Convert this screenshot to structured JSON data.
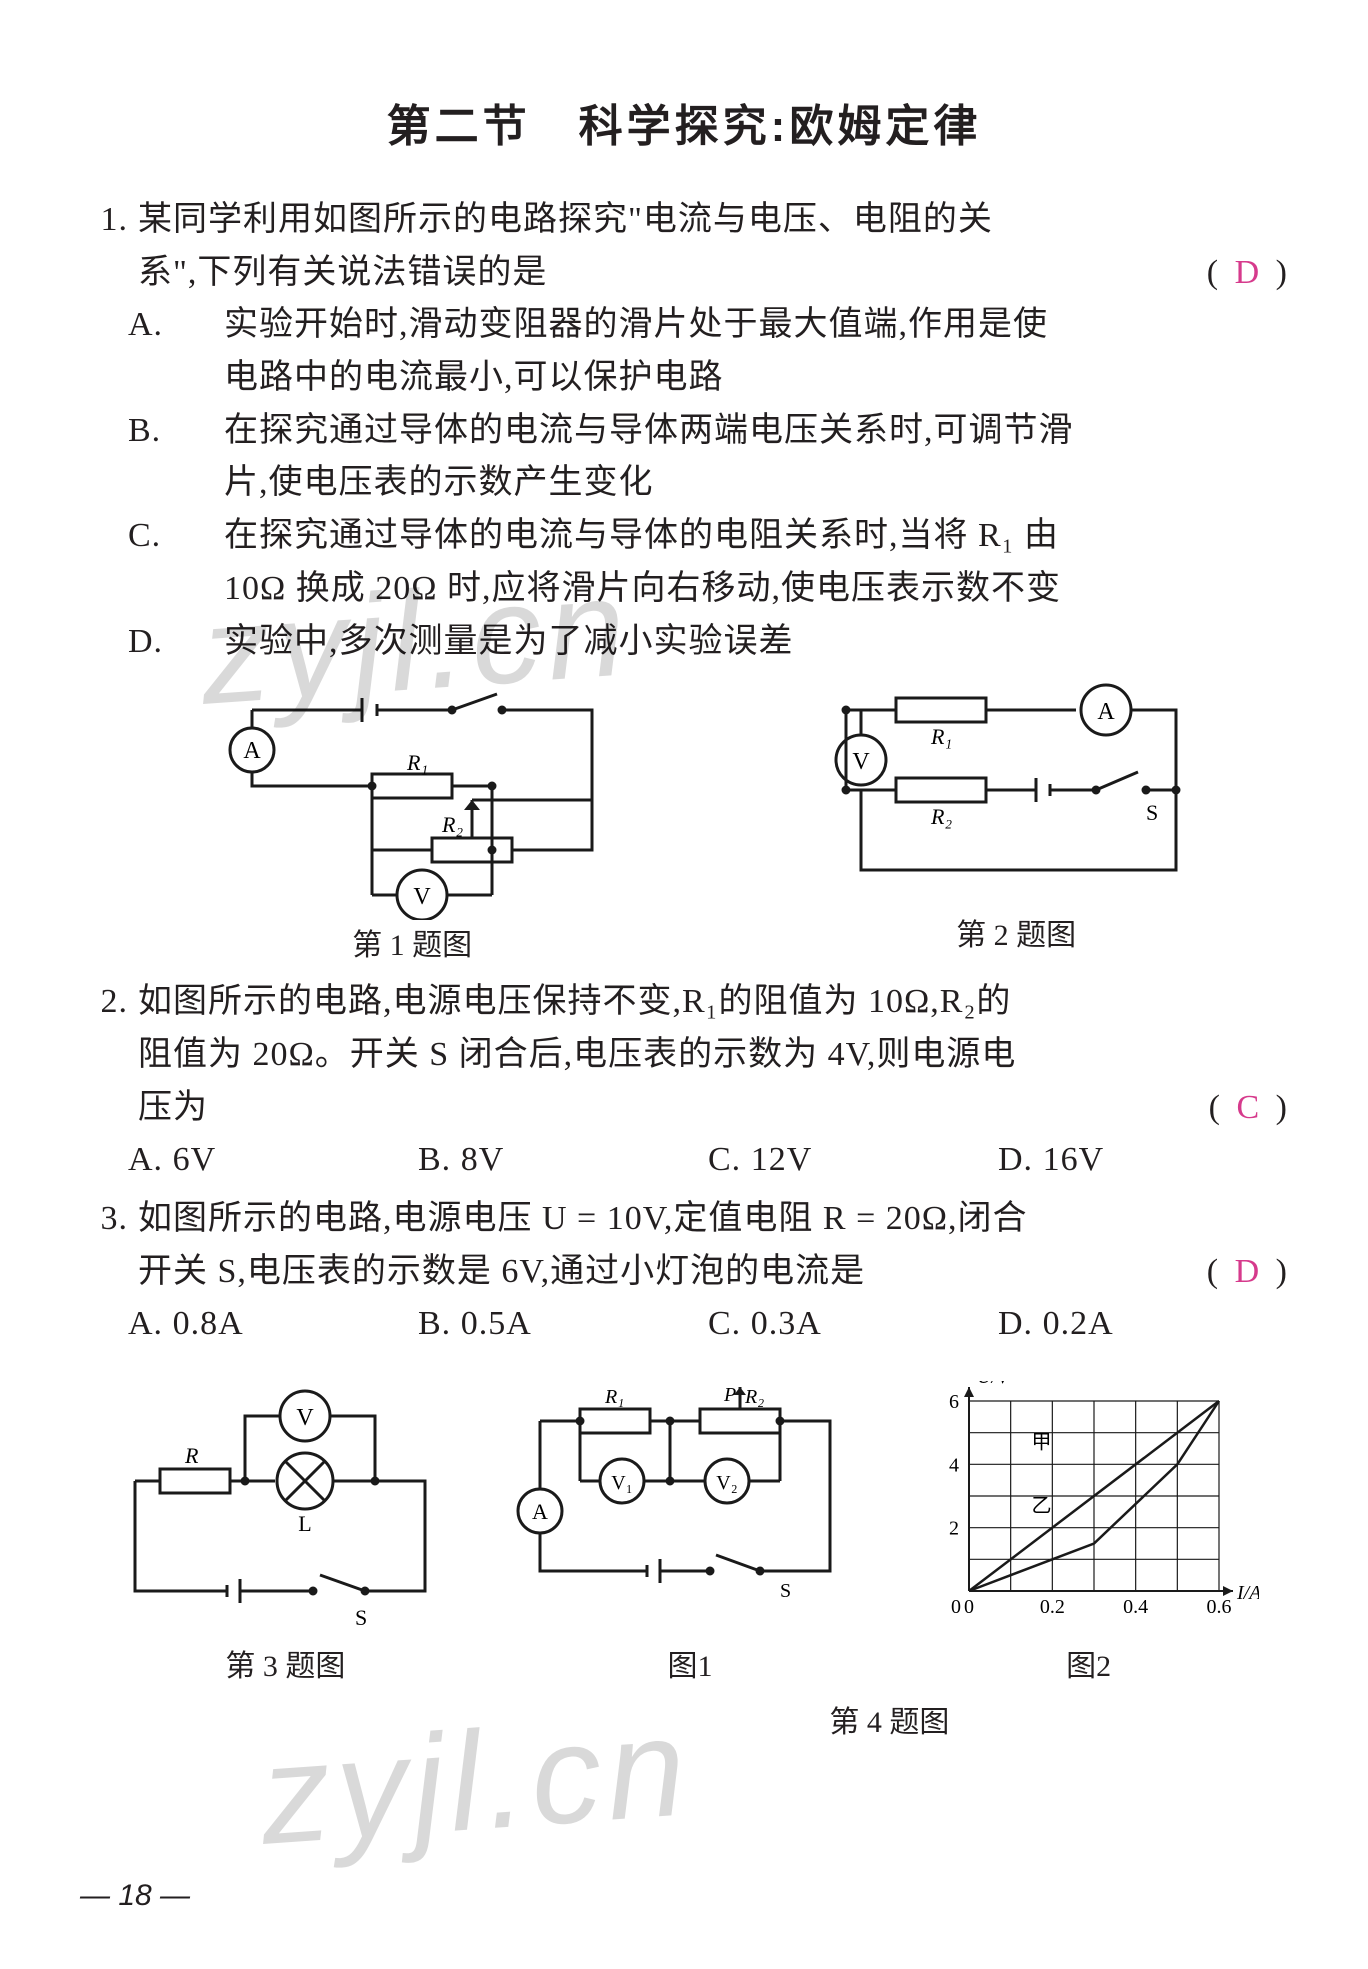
{
  "title": "第二节　科学探究:欧姆定律",
  "page_number": "— 18 —",
  "watermark_text": "zyjl.cn",
  "colors": {
    "text": "#231f20",
    "answer": "#d63a8c",
    "watermark": "rgba(0,0,0,0.15)",
    "stroke": "#1a1a1a"
  },
  "questions": [
    {
      "number": "1.",
      "stem_lines": [
        "某同学利用如图所示的电路探究\"电流与电压、电阻的关",
        "系\",下列有关说法错误的是"
      ],
      "paren_open": "(",
      "paren_close": ")",
      "answer": "D",
      "options": [
        {
          "label": "A.",
          "lines": [
            "实验开始时,滑动变阻器的滑片处于最大值端,作用是使",
            "电路中的电流最小,可以保护电路"
          ]
        },
        {
          "label": "B.",
          "lines": [
            "在探究通过导体的电流与导体两端电压关系时,可调节滑",
            "片,使电压表的示数产生变化"
          ]
        },
        {
          "label": "C.",
          "lines": [
            "在探究通过导体的电流与导体的电阻关系时,当将 R₁ 由",
            "10Ω 换成 20Ω 时,应将滑片向右移动,使电压表示数不变"
          ]
        },
        {
          "label": "D.",
          "lines": [
            "实验中,多次测量是为了减小实验误差"
          ]
        }
      ],
      "figure_caption": "第 1 题图"
    },
    {
      "number": "2.",
      "stem_lines": [
        "如图所示的电路,电源电压保持不变,R₁的阻值为 10Ω,R₂的",
        "阻值为 20Ω。开关 S 闭合后,电压表的示数为 4V,则电源电",
        "压为"
      ],
      "paren_open": "(",
      "paren_close": ")",
      "answer": "C",
      "options_inline": [
        {
          "label": "A.",
          "text": "6V"
        },
        {
          "label": "B.",
          "text": "8V"
        },
        {
          "label": "C.",
          "text": "12V"
        },
        {
          "label": "D.",
          "text": "16V"
        }
      ],
      "figure_caption": "第 2 题图"
    },
    {
      "number": "3.",
      "stem_lines": [
        "如图所示的电路,电源电压 U = 10V,定值电阻 R = 20Ω,闭合",
        "开关 S,电压表的示数是 6V,通过小灯泡的电流是"
      ],
      "paren_open": "(",
      "paren_close": ")",
      "answer": "D",
      "options_inline": [
        {
          "label": "A.",
          "text": "0.8A"
        },
        {
          "label": "B.",
          "text": "0.5A"
        },
        {
          "label": "C.",
          "text": "0.3A"
        },
        {
          "label": "D.",
          "text": "0.2A"
        }
      ],
      "figure_caption": "第 3 题图"
    }
  ],
  "fig_q4": {
    "caption": "第 4 题图",
    "panel1_label": "图1",
    "panel2_label": "图2",
    "panel2": {
      "type": "line-chart",
      "xlabel": "I/A",
      "ylabel": "U/V",
      "xlim": [
        0,
        0.6
      ],
      "ylim": [
        0,
        6
      ],
      "xticks": [
        0,
        0.2,
        0.4,
        0.6
      ],
      "yticks": [
        0,
        2,
        4,
        6
      ],
      "grid_step_x": 0.1,
      "grid_step_y": 1,
      "grid_color": "#1a1a1a",
      "series": [
        {
          "name": "甲",
          "label_pos": [
            0.15,
            4.5
          ],
          "points": [
            [
              0,
              0
            ],
            [
              0.6,
              6
            ]
          ]
        },
        {
          "name": "乙",
          "label_pos": [
            0.15,
            2.5
          ],
          "points": [
            [
              0,
              0
            ],
            [
              0.3,
              1.5
            ],
            [
              0.5,
              4
            ],
            [
              0.6,
              6
            ]
          ]
        }
      ],
      "line_color": "#1a1a1a"
    }
  },
  "circuit_labels": {
    "A": "A",
    "V": "V",
    "V1": "V₁",
    "V2": "V₂",
    "R": "R",
    "R1": "R₁",
    "R2": "R₂",
    "L": "L",
    "S": "S",
    "P": "P"
  }
}
